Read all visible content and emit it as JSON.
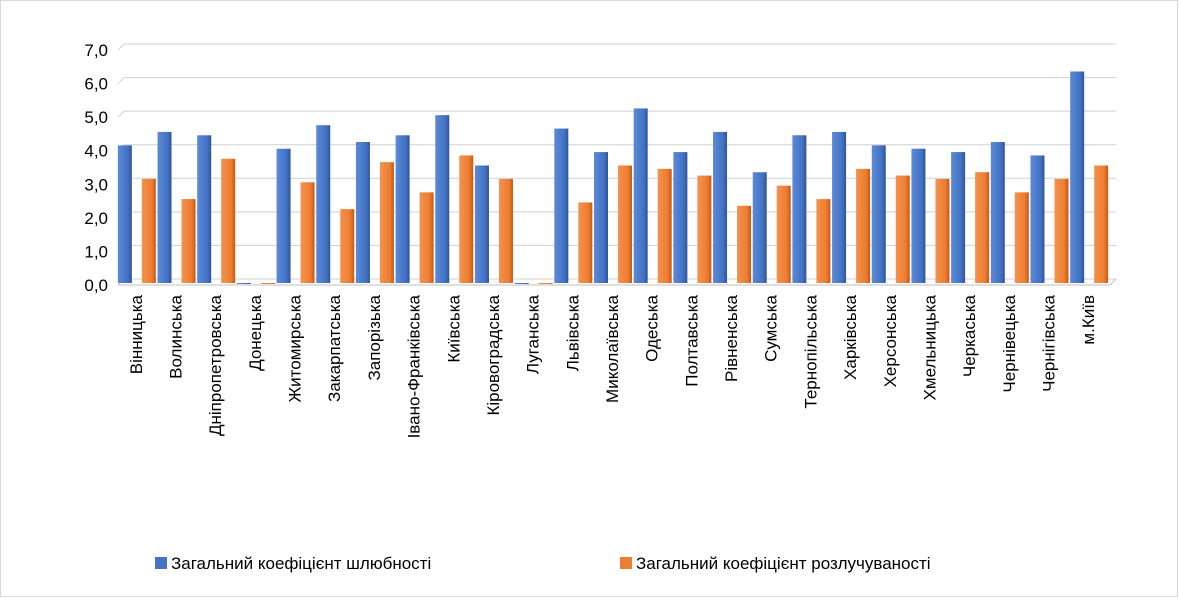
{
  "chart_data": {
    "type": "bar",
    "categories": [
      "Вінницька",
      "Волинська",
      "Дніпропетровська",
      "Донецька",
      "Житомирська",
      "Закарпатська",
      "Запорізька",
      "Івано-Франківська",
      "Київська",
      "Кіровоградська",
      "Луганська",
      "Львівська",
      "Миколаївська",
      "Одеська",
      "Полтавська",
      "Рівненська",
      "Сумська",
      "Тернопільська",
      "Харківська",
      "Херсонська",
      "Хмельницька",
      "Черкаська",
      "Чернівецька",
      "Чернігівська",
      "м.Київ"
    ],
    "series": [
      {
        "name": "Загальний коефіцієнт шлюбності",
        "color": "#4472c4",
        "values": [
          4.1,
          4.5,
          4.4,
          0,
          4.0,
          4.7,
          4.2,
          4.4,
          5.0,
          3.5,
          0,
          4.6,
          3.9,
          5.2,
          3.9,
          4.5,
          3.3,
          4.4,
          4.5,
          4.1,
          4.0,
          3.9,
          4.2,
          3.8,
          6.3
        ]
      },
      {
        "name": "Загальний коефіцієнт розлучуваності",
        "color": "#ed7d31",
        "values": [
          3.1,
          2.5,
          3.7,
          0,
          3.0,
          2.2,
          3.6,
          2.7,
          3.8,
          3.1,
          0,
          2.4,
          3.5,
          3.4,
          3.2,
          2.3,
          2.9,
          2.5,
          3.4,
          3.2,
          3.1,
          3.3,
          2.7,
          3.1,
          3.5
        ]
      }
    ],
    "ylim": [
      0,
      7
    ],
    "yticks": [
      {
        "value": 0,
        "label": "0,0"
      },
      {
        "value": 1,
        "label": "1,0"
      },
      {
        "value": 2,
        "label": "2,0"
      },
      {
        "value": 3,
        "label": "3,0"
      },
      {
        "value": 4,
        "label": "4,0"
      },
      {
        "value": 5,
        "label": "5,0"
      },
      {
        "value": 6,
        "label": "6,0"
      },
      {
        "value": 7,
        "label": "7,0"
      }
    ],
    "grid": true,
    "legend": "bottom"
  }
}
